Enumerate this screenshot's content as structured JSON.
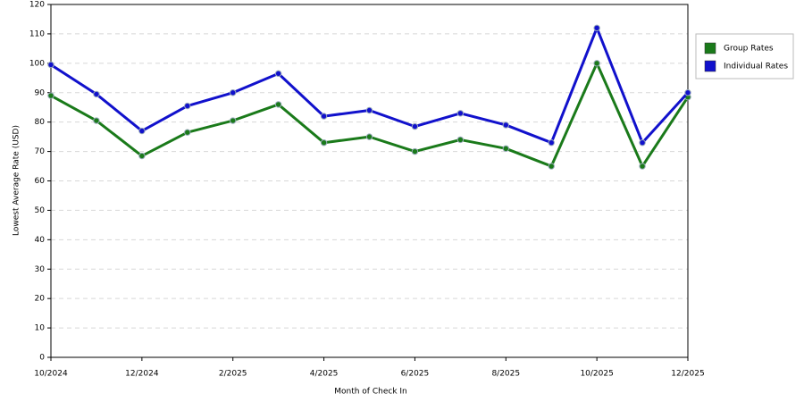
{
  "chart_data": {
    "type": "line",
    "x_label": "Month of Check In",
    "y_label": "Lowest Average Rate (USD)",
    "categories": [
      "10/2024",
      null,
      "12/2024",
      null,
      "2/2025",
      null,
      "4/2025",
      null,
      "6/2025",
      null,
      "8/2025",
      null,
      "10/2025",
      null,
      "12/2025"
    ],
    "series": [
      {
        "name": "Group Rates",
        "color": "#1a7a1a",
        "values": [
          89,
          80.5,
          68.5,
          76.5,
          80.5,
          86,
          73,
          75,
          70,
          74,
          71,
          65,
          100,
          65,
          88.5
        ]
      },
      {
        "name": "Individual Rates",
        "color": "#1111cc",
        "values": [
          99.5,
          89.5,
          77,
          85.5,
          90,
          96.5,
          82,
          84,
          78.5,
          83,
          79,
          73,
          112,
          73,
          90
        ]
      }
    ],
    "ylim": [
      0,
      120
    ],
    "yticks": [
      0,
      10,
      20,
      30,
      40,
      50,
      60,
      70,
      80,
      90,
      100,
      110,
      120
    ],
    "grid": true,
    "legend": "right"
  }
}
